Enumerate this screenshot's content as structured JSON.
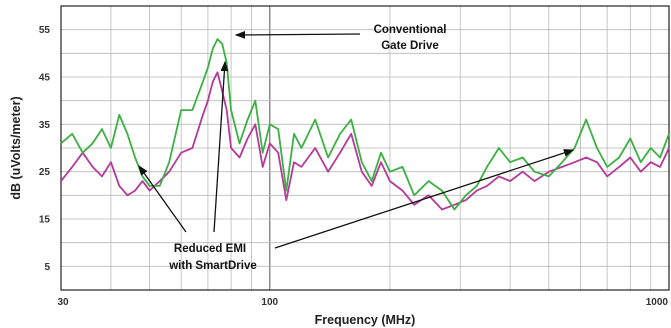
{
  "chart_data": {
    "type": "line",
    "xlabel": "Frequency (MHz)",
    "ylabel": "dB (uVolts/meter)",
    "xscale": "log",
    "xlim": [
      30,
      1000
    ],
    "ylim": [
      0,
      60
    ],
    "grid": true,
    "x_ticks": [
      {
        "value": 30,
        "label": "30"
      },
      {
        "value": 100,
        "label": "100"
      },
      {
        "value": 1000,
        "label": "1000"
      }
    ],
    "y_ticks": [
      {
        "value": 55,
        "label": "55"
      },
      {
        "value": 45,
        "label": "45"
      },
      {
        "value": 35,
        "label": "35"
      },
      {
        "value": 25,
        "label": "25"
      },
      {
        "value": 15,
        "label": "15"
      },
      {
        "value": 5,
        "label": "5"
      }
    ],
    "series": [
      {
        "color": "#3cb043",
        "x": [
          30,
          32,
          34,
          36,
          38,
          40,
          42,
          44,
          46,
          48,
          50,
          53,
          56,
          60,
          64,
          68,
          70,
          72,
          74,
          76,
          78,
          80,
          84,
          88,
          92,
          96,
          100,
          105,
          110,
          115,
          120,
          130,
          140,
          150,
          160,
          170,
          180,
          190,
          200,
          215,
          230,
          250,
          270,
          290,
          310,
          330,
          350,
          375,
          400,
          430,
          460,
          500,
          540,
          580,
          620,
          660,
          700,
          750,
          800,
          850,
          900,
          950,
          1000
        ],
        "values": [
          31,
          33,
          29,
          31,
          34,
          30,
          37,
          33,
          28,
          24,
          22,
          22,
          27,
          38,
          38,
          44,
          47,
          51,
          53,
          52,
          48,
          38,
          31,
          36,
          40,
          29,
          35,
          34,
          21,
          33,
          30,
          36,
          28,
          33,
          36,
          27,
          23,
          29,
          25,
          26,
          20,
          23,
          21,
          17,
          20,
          22,
          26,
          30,
          27,
          28,
          25,
          24,
          27,
          30,
          36,
          30,
          26,
          28,
          32,
          27,
          30,
          28,
          33
        ]
      },
      {
        "color": "#b5399b",
        "x": [
          30,
          32,
          34,
          36,
          38,
          40,
          42,
          44,
          46,
          48,
          50,
          53,
          56,
          60,
          64,
          68,
          70,
          72,
          74,
          76,
          78,
          80,
          84,
          88,
          92,
          96,
          100,
          105,
          110,
          115,
          120,
          130,
          140,
          150,
          160,
          170,
          180,
          190,
          200,
          215,
          230,
          250,
          270,
          290,
          310,
          330,
          350,
          375,
          400,
          430,
          460,
          500,
          540,
          580,
          620,
          660,
          700,
          750,
          800,
          850,
          900,
          950,
          1000
        ],
        "values": [
          23,
          26,
          29,
          26,
          24,
          27,
          22,
          20,
          21,
          23,
          21,
          23,
          25,
          29,
          30,
          37,
          40,
          44,
          46,
          42,
          38,
          30,
          28,
          32,
          35,
          26,
          31,
          29,
          19,
          27,
          26,
          30,
          25,
          29,
          33,
          25,
          22,
          27,
          23,
          21,
          18,
          20,
          17,
          18,
          19,
          21,
          22,
          24,
          23,
          25,
          23,
          25,
          26,
          27,
          28,
          27,
          24,
          26,
          28,
          25,
          27,
          26,
          30
        ]
      }
    ],
    "annotations": {
      "top": [
        "Conventional",
        "Gate Drive"
      ],
      "bottom": [
        "Reduced EMI",
        "with SmartDrive"
      ]
    }
  }
}
